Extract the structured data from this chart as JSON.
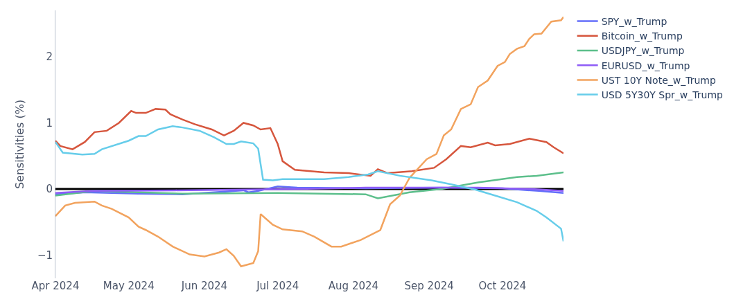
{
  "chart_data": {
    "type": "line",
    "ylabel": "Sensitivities (%)",
    "xlim": [
      "2024-04-01",
      "2024-10-26"
    ],
    "xticks": [
      {
        "value": "2024-04-01",
        "label": "Apr 2024"
      },
      {
        "value": "2024-05-01",
        "label": "May 2024"
      },
      {
        "value": "2024-06-01",
        "label": "Jun 2024"
      },
      {
        "value": "2024-07-01",
        "label": "Jul 2024"
      },
      {
        "value": "2024-08-01",
        "label": "Aug 2024"
      },
      {
        "value": "2024-09-01",
        "label": "Sep 2024"
      },
      {
        "value": "2024-10-01",
        "label": "Oct 2024"
      }
    ],
    "ylim": [
      -1.35,
      2.7
    ],
    "yticks": [
      {
        "value": -1,
        "label": "−1"
      },
      0,
      1,
      2
    ],
    "grid": false,
    "legend": "top right",
    "marker": "none",
    "line_style": "solid",
    "ref_lines": [
      {
        "axis": "y",
        "value": 0,
        "label": null,
        "color": "#000000"
      }
    ],
    "series": [
      {
        "name": "SPY_w_Trump",
        "color": "#636efa",
        "x": [
          "2024-04-01",
          "2024-04-13",
          "2024-05-05",
          "2024-05-23",
          "2024-06-05",
          "2024-06-17",
          "2024-06-19",
          "2024-06-23",
          "2024-07-01",
          "2024-07-09",
          "2024-08-06",
          "2024-09-06",
          "2024-10-01",
          "2024-10-16",
          "2024-10-26"
        ],
        "values": [
          -0.08,
          -0.05,
          -0.07,
          -0.08,
          -0.05,
          -0.02,
          -0.05,
          -0.03,
          0.04,
          0.02,
          0.01,
          0.02,
          0.01,
          -0.03,
          -0.06
        ]
      },
      {
        "name": "Bitcoin_w_Trump",
        "color": "#d6563d",
        "x": [
          "2024-04-01",
          "2024-04-03",
          "2024-04-08",
          "2024-04-13",
          "2024-04-17",
          "2024-04-22",
          "2024-04-27",
          "2024-05-02",
          "2024-05-04",
          "2024-05-08",
          "2024-05-12",
          "2024-05-16",
          "2024-05-18",
          "2024-05-23",
          "2024-05-28",
          "2024-06-04",
          "2024-06-09",
          "2024-06-13",
          "2024-06-17",
          "2024-06-21",
          "2024-06-24",
          "2024-06-28",
          "2024-07-01",
          "2024-07-03",
          "2024-07-08",
          "2024-07-20",
          "2024-07-30",
          "2024-08-08",
          "2024-08-11",
          "2024-08-15",
          "2024-08-25",
          "2024-09-03",
          "2024-09-08",
          "2024-09-14",
          "2024-09-18",
          "2024-09-25",
          "2024-09-28",
          "2024-10-04",
          "2024-10-12",
          "2024-10-19",
          "2024-10-22",
          "2024-10-26"
        ],
        "values": [
          0.73,
          0.65,
          0.6,
          0.71,
          0.86,
          0.88,
          1.0,
          1.18,
          1.15,
          1.15,
          1.21,
          1.2,
          1.13,
          1.05,
          0.98,
          0.9,
          0.81,
          0.88,
          1.0,
          0.96,
          0.9,
          0.92,
          0.68,
          0.42,
          0.29,
          0.25,
          0.24,
          0.2,
          0.3,
          0.24,
          0.27,
          0.32,
          0.45,
          0.65,
          0.63,
          0.7,
          0.66,
          0.68,
          0.76,
          0.71,
          0.63,
          0.54
        ]
      },
      {
        "name": "USDJPY_w_Trump",
        "color": "#5cbf8b",
        "x": [
          "2024-04-01",
          "2024-04-17",
          "2024-05-23",
          "2024-07-01",
          "2024-08-06",
          "2024-08-11",
          "2024-08-24",
          "2024-09-06",
          "2024-09-21",
          "2024-10-07",
          "2024-10-15",
          "2024-10-26"
        ],
        "values": [
          -0.1,
          -0.03,
          -0.07,
          -0.06,
          -0.08,
          -0.14,
          -0.05,
          0.0,
          0.1,
          0.18,
          0.2,
          0.25
        ]
      },
      {
        "name": "EURUSD_w_Trump",
        "color": "#8e5cf7",
        "x": [
          "2024-04-01",
          "2024-04-16",
          "2024-05-20",
          "2024-07-09",
          "2024-08-06",
          "2024-09-21",
          "2024-10-13",
          "2024-10-26"
        ],
        "values": [
          -0.06,
          -0.03,
          -0.02,
          0.0,
          0.02,
          0.02,
          0.0,
          -0.03
        ]
      },
      {
        "name": "UST 10Y Note_w_Trump",
        "color": "#f2a35e",
        "x": [
          "2024-04-01",
          "2024-04-05",
          "2024-04-09",
          "2024-04-17",
          "2024-04-20",
          "2024-04-24",
          "2024-05-01",
          "2024-05-05",
          "2024-05-08",
          "2024-05-13",
          "2024-05-19",
          "2024-05-26",
          "2024-06-01",
          "2024-06-07",
          "2024-06-10",
          "2024-06-13",
          "2024-06-16",
          "2024-06-21",
          "2024-06-23",
          "2024-06-24",
          "2024-06-29",
          "2024-07-03",
          "2024-07-11",
          "2024-07-16",
          "2024-07-23",
          "2024-07-27",
          "2024-08-04",
          "2024-08-12",
          "2024-08-16",
          "2024-08-20",
          "2024-08-24",
          "2024-08-31",
          "2024-09-04",
          "2024-09-07",
          "2024-09-10",
          "2024-09-14",
          "2024-09-18",
          "2024-09-21",
          "2024-09-25",
          "2024-09-29",
          "2024-10-02",
          "2024-10-04",
          "2024-10-07",
          "2024-10-10",
          "2024-10-12",
          "2024-10-14",
          "2024-10-17",
          "2024-10-21",
          "2024-10-25",
          "2024-10-26"
        ],
        "values": [
          -0.41,
          -0.25,
          -0.21,
          -0.19,
          -0.25,
          -0.3,
          -0.43,
          -0.57,
          -0.62,
          -0.72,
          -0.87,
          -0.99,
          -1.02,
          -0.96,
          -0.91,
          -1.01,
          -1.17,
          -1.12,
          -0.94,
          -0.38,
          -0.54,
          -0.61,
          -0.64,
          -0.72,
          -0.87,
          -0.87,
          -0.77,
          -0.62,
          -0.23,
          -0.1,
          0.17,
          0.45,
          0.53,
          0.81,
          0.9,
          1.21,
          1.28,
          1.54,
          1.64,
          1.86,
          1.92,
          2.04,
          2.12,
          2.16,
          2.27,
          2.34,
          2.35,
          2.53,
          2.55,
          2.6
        ]
      },
      {
        "name": "USD 5Y30Y Spr_w_Trump",
        "color": "#66cdea",
        "x": [
          "2024-04-01",
          "2024-04-04",
          "2024-04-12",
          "2024-04-17",
          "2024-04-20",
          "2024-05-01",
          "2024-05-05",
          "2024-05-08",
          "2024-05-13",
          "2024-05-19",
          "2024-05-23",
          "2024-05-30",
          "2024-06-05",
          "2024-06-10",
          "2024-06-13",
          "2024-06-16",
          "2024-06-21",
          "2024-06-23",
          "2024-06-25",
          "2024-06-29",
          "2024-07-03",
          "2024-07-20",
          "2024-07-30",
          "2024-08-07",
          "2024-08-11",
          "2024-08-20",
          "2024-09-02",
          "2024-09-10",
          "2024-09-20",
          "2024-09-28",
          "2024-10-07",
          "2024-10-15",
          "2024-10-19",
          "2024-10-25",
          "2024-10-26"
        ],
        "values": [
          0.71,
          0.55,
          0.52,
          0.53,
          0.6,
          0.73,
          0.8,
          0.8,
          0.9,
          0.95,
          0.93,
          0.88,
          0.78,
          0.68,
          0.68,
          0.72,
          0.69,
          0.61,
          0.14,
          0.13,
          0.15,
          0.15,
          0.18,
          0.22,
          0.27,
          0.2,
          0.13,
          0.07,
          -0.01,
          -0.1,
          -0.2,
          -0.33,
          -0.43,
          -0.6,
          -0.79
        ]
      }
    ]
  }
}
